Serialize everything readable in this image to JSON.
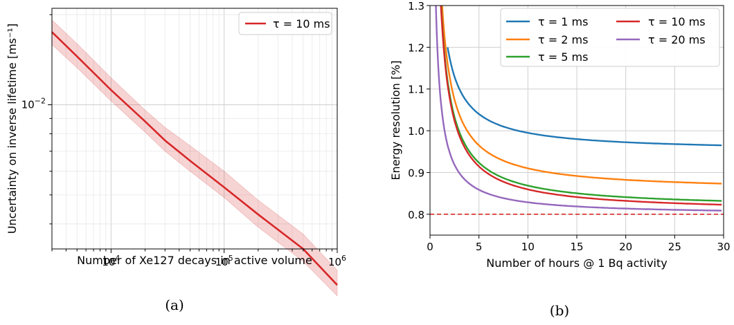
{
  "chart_data": [
    {
      "type": "line",
      "xscale": "log",
      "yscale": "log",
      "xlim": [
        3000,
        1000000
      ],
      "ylim": [
        0.0033,
        0.021
      ],
      "xlabel": "Number of Xe127 decays in active volume",
      "ylabel": "Uncertainty on inverse lifetime [ms⁻¹]",
      "xticks": [
        {
          "value": 10000,
          "base": "10",
          "exp": "4"
        },
        {
          "value": 100000,
          "base": "10",
          "exp": "5"
        },
        {
          "value": 1000000,
          "base": "10",
          "exp": "6"
        }
      ],
      "yticks": [
        {
          "value": 0.01,
          "base": "10",
          "exp": "−2"
        }
      ],
      "grid": true,
      "legend": {
        "position": "top-right"
      },
      "caption": "(a)",
      "series": [
        {
          "name": "τ = 10 ms",
          "color": "#d62728",
          "x": [
            3000,
            5000,
            10000,
            20000,
            30000,
            50000,
            100000,
            200000,
            500000,
            1000000
          ],
          "y": [
            0.0175,
            0.0145,
            0.0112,
            0.0088,
            0.0076,
            0.0065,
            0.0053,
            0.0043,
            0.0033,
            0.0025
          ],
          "y_lower": [
            0.0159,
            0.0133,
            0.0103,
            0.0081,
            0.007,
            0.006,
            0.0049,
            0.0039,
            0.003,
            0.0023
          ],
          "y_upper": [
            0.0192,
            0.016,
            0.0123,
            0.0096,
            0.0084,
            0.0073,
            0.006,
            0.0048,
            0.0037,
            0.0028
          ]
        }
      ]
    },
    {
      "type": "line",
      "xlim": [
        0,
        30
      ],
      "ylim": [
        0.75,
        1.3
      ],
      "xlabel": "Number of hours @ 1 Bq activity",
      "ylabel": "Energy resolution [%]",
      "xticks": [
        0,
        5,
        10,
        15,
        20,
        25,
        30
      ],
      "yticks": [
        "0.8",
        "0.9",
        "1.0",
        "1.1",
        "1.2",
        "1.3"
      ],
      "grid": true,
      "legend": {
        "position": "top-right",
        "columns": 2
      },
      "reference_line": {
        "y": 0.8,
        "color": "#d62728",
        "style": "dashed"
      },
      "caption": "(b)",
      "series": [
        {
          "name": "τ = 1 ms",
          "color": "#1f77b4",
          "asymptote": 0.95,
          "amplitude": 0.45,
          "x_start": 1.8
        },
        {
          "name": "τ = 2 ms",
          "color": "#ff7f0e",
          "asymptote": 0.855,
          "amplitude": 0.55,
          "x_start": 1.0
        },
        {
          "name": "τ = 5 ms",
          "color": "#2ca02c",
          "asymptote": 0.8135,
          "amplitude": 0.55,
          "x_start": 0.7
        },
        {
          "name": "τ = 10 ms",
          "color": "#d62728",
          "asymptote": 0.8045,
          "amplitude": 0.55,
          "x_start": 0.6
        },
        {
          "name": "τ = 20 ms",
          "color": "#9467bd",
          "asymptote": 0.7986,
          "amplitude": 0.3,
          "x_start": 0.4
        }
      ]
    }
  ]
}
